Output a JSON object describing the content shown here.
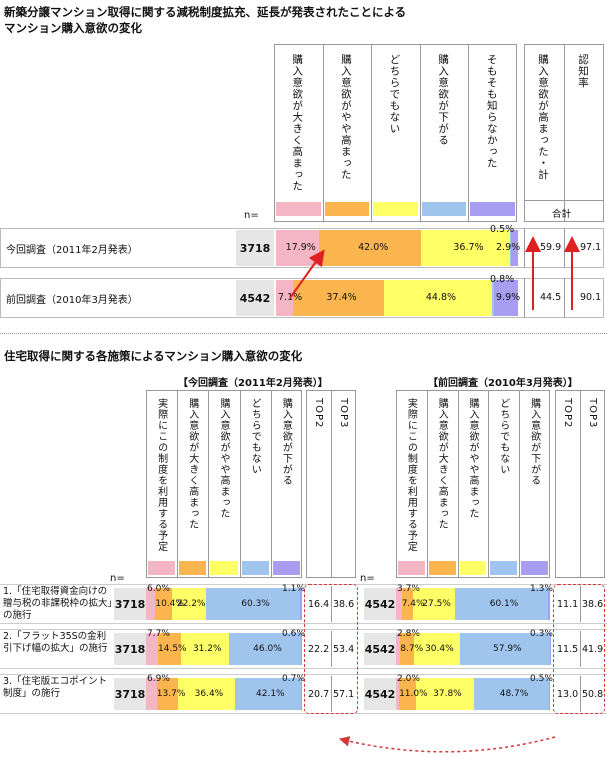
{
  "colors": {
    "s1": "#f4b6c5",
    "s2": "#fbb54e",
    "s3": "#ffff66",
    "s4": "#9fc5ee",
    "s5": "#a99df2",
    "arrow": "#e02020",
    "dash": "#d23a3a",
    "nbg": "#e6e6e6"
  },
  "top": {
    "title1": "新築分譲マンション取得に関する減税制度拡充、延長が発表されたことによる",
    "title2": "マンション購入意欲の変化",
    "col_labels": [
      "購入意欲が大きく高まった",
      "購入意欲がやや高まった",
      "どちらでもない",
      "購入意欲が下がる",
      "そもそも知らなかった"
    ],
    "side_labels": [
      "購入意欲が高まった・計",
      "認知率"
    ],
    "sum_label": "合計",
    "n_label": "n=",
    "rows": [
      {
        "label": "今回調査（2011年2月発表）",
        "n": "3718",
        "values": [
          17.9,
          42.0,
          36.7,
          0.5,
          2.9
        ],
        "vlabels": [
          "17.9%",
          "42.0%",
          "36.7%",
          "0.5%",
          "2.9%"
        ],
        "top": "59.9",
        "aware": "97.1"
      },
      {
        "label": "前回調査（2010年3月発表）",
        "n": "4542",
        "values": [
          7.1,
          37.4,
          44.8,
          0.8,
          9.9
        ],
        "vlabels": [
          "7.1%",
          "37.4%",
          "44.8%",
          "0.8%",
          "9.9%"
        ],
        "top": "44.5",
        "aware": "90.1"
      }
    ]
  },
  "bottom": {
    "title": "住宅取得に関する各施策によるマンション購入意欲の変化",
    "col_labels": [
      "実際にこの制度を利用する予定",
      "購入意欲が大きく高まった",
      "購入意欲がやや高まった",
      "どちらでもない",
      "購入意欲が下がる"
    ],
    "top_labels": [
      "TOP2",
      "TOP3"
    ],
    "n_label": "n=",
    "items": [
      {
        "label": "1.「住宅取得資金向けの贈与税の非課税枠の拡大」の施行"
      },
      {
        "label": "2.「フラット35Sの金利引下げ幅の拡大」の施行"
      },
      {
        "label": "3.「住宅版エコポイント制度」の施行"
      }
    ],
    "panels": [
      {
        "header": "【今回調査（2011年2月発表）】",
        "rows": [
          {
            "n": "3718",
            "values": [
              6.0,
              10.4,
              22.2,
              60.3,
              1.1
            ],
            "vlabels": [
              "6.0%",
              "10.4%",
              "22.2%",
              "60.3%",
              "1.1%"
            ],
            "top2": "16.4",
            "top3": "38.6"
          },
          {
            "n": "3718",
            "values": [
              7.7,
              14.5,
              31.2,
              46.0,
              0.6
            ],
            "vlabels": [
              "7.7%",
              "14.5%",
              "31.2%",
              "46.0%",
              "0.6%"
            ],
            "top2": "22.2",
            "top3": "53.4"
          },
          {
            "n": "3718",
            "values": [
              6.9,
              13.7,
              36.4,
              42.1,
              0.7
            ],
            "vlabels": [
              "6.9%",
              "13.7%",
              "36.4%",
              "42.1%",
              "0.7%"
            ],
            "top2": "20.7",
            "top3": "57.1"
          }
        ]
      },
      {
        "header": "【前回調査（2010年3月発表）】",
        "rows": [
          {
            "n": "4542",
            "values": [
              3.7,
              7.4,
              27.5,
              60.1,
              1.3
            ],
            "vlabels": [
              "3.7%",
              "7.4%",
              "27.5%",
              "60.1%",
              "1.3%"
            ],
            "top2": "11.1",
            "top3": "38.6"
          },
          {
            "n": "4542",
            "values": [
              2.8,
              8.7,
              30.4,
              57.9,
              0.3
            ],
            "vlabels": [
              "2.8%",
              "8.7%",
              "30.4%",
              "57.9%",
              "0.3%"
            ],
            "top2": "11.5",
            "top3": "41.9"
          },
          {
            "n": "4542",
            "values": [
              2.0,
              11.0,
              37.8,
              48.7,
              0.5
            ],
            "vlabels": [
              "2.0%",
              "11.0%",
              "37.8%",
              "48.7%",
              "0.5%"
            ],
            "top2": "13.0",
            "top3": "50.8"
          }
        ]
      }
    ]
  },
  "chart_data": [
    {
      "type": "bar",
      "title": "新築分譲マンション取得に関する減税制度拡充、延長が発表されたことによるマンション購入意欲の変化",
      "categories": [
        "今回調査（2011年2月発表）",
        "前回調査（2010年3月発表）"
      ],
      "series": [
        {
          "name": "購入意欲が大きく高まった",
          "values": [
            17.9,
            7.1
          ]
        },
        {
          "name": "購入意欲がやや高まった",
          "values": [
            42.0,
            37.4
          ]
        },
        {
          "name": "どちらでもない",
          "values": [
            36.7,
            44.8
          ]
        },
        {
          "name": "購入意欲が下がる",
          "values": [
            0.5,
            0.8
          ]
        },
        {
          "name": "そもそも知らなかった",
          "values": [
            2.9,
            9.9
          ]
        }
      ],
      "n": [
        3718,
        4542
      ],
      "top2": [
        59.9,
        44.5
      ],
      "awareness": [
        97.1,
        90.1
      ]
    },
    {
      "type": "bar",
      "title": "住宅取得に関する各施策によるマンション購入意欲の変化 【今回調査（2011年2月発表）】",
      "categories": [
        "1",
        "2",
        "3"
      ],
      "series": [
        {
          "name": "実際にこの制度を利用する予定",
          "values": [
            6.0,
            7.7,
            6.9
          ]
        },
        {
          "name": "購入意欲が大きく高まった",
          "values": [
            10.4,
            14.5,
            13.7
          ]
        },
        {
          "name": "購入意欲がやや高まった",
          "values": [
            22.2,
            31.2,
            36.4
          ]
        },
        {
          "name": "どちらでもない",
          "values": [
            60.3,
            46.0,
            42.1
          ]
        },
        {
          "name": "購入意欲が下がる",
          "values": [
            1.1,
            0.6,
            0.7
          ]
        }
      ],
      "top2": [
        16.4,
        22.2,
        20.7
      ],
      "top3": [
        38.6,
        53.4,
        57.1
      ]
    },
    {
      "type": "bar",
      "title": "住宅取得に関する各施策によるマンション購入意欲の変化 【前回調査（2010年3月発表）】",
      "categories": [
        "1",
        "2",
        "3"
      ],
      "series": [
        {
          "name": "実際にこの制度を利用する予定",
          "values": [
            3.7,
            2.8,
            2.0
          ]
        },
        {
          "name": "購入意欲が大きく高まった",
          "values": [
            7.4,
            8.7,
            11.0
          ]
        },
        {
          "name": "購入意欲がやや高まった",
          "values": [
            27.5,
            30.4,
            37.8
          ]
        },
        {
          "name": "どちらでもない",
          "values": [
            60.1,
            57.9,
            48.7
          ]
        },
        {
          "name": "購入意欲が下がる",
          "values": [
            1.3,
            0.3,
            0.5
          ]
        }
      ],
      "top2": [
        11.1,
        11.5,
        13.0
      ],
      "top3": [
        38.6,
        41.9,
        50.8
      ]
    }
  ]
}
